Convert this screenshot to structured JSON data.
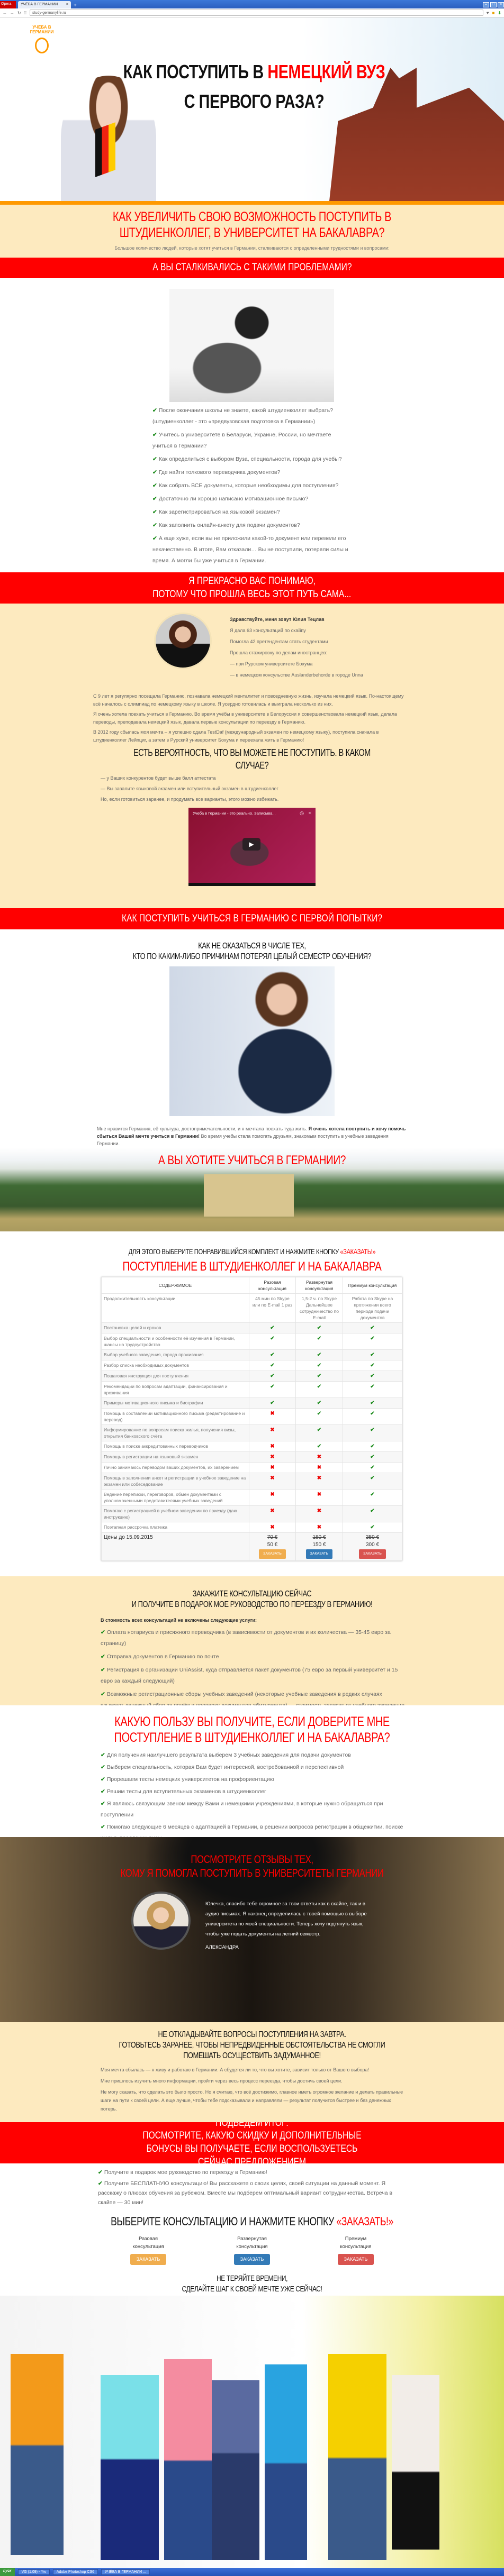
{
  "browser": {
    "app": "Opera",
    "tab_title": "УЧЁБА В ГЕРМАНИИ",
    "url": "study-germanylife.ru"
  },
  "colors": {
    "accent_red": "#ff0000",
    "orange": "#ff9900",
    "beige": "#fdeabf",
    "check_green": "#1a8a1a"
  },
  "hero": {
    "logo_text": "УЧЁБА В ГЕРМАНИИ",
    "title_pre": "КАК ПОСТУПИТЬ В ",
    "title_hl": "НЕМЕЦКИЙ ВУЗ",
    "title_post": " С ПЕРВОГО РАЗА?"
  },
  "intro": {
    "title": "КАК УВЕЛИЧИТЬ СВОЮ ВОЗМОЖНОСТЬ ПОСТУПИТЬ В ШТУДИЕНКОЛЛЕГ, В УНИВЕРСИТЕТ НА БАКАЛАВРА?",
    "subtitle": "Большое количество людей, которые хотят учиться в Германии, сталкиваются с определенными трудностями и вопросами:"
  },
  "problems": {
    "band": "А ВЫ СТАЛКИВАЛИСЬ С ТАКИМИ ПРОБЛЕМАМИ?",
    "items": [
      "После окончания школы не знаете, какой штудиенколлег выбрать? (штудиенколлег - это «предвузовская подготовка в Германии»)",
      "Учитесь в университете в Беларуси, Украине, России, но мечтаете учиться в Германии?",
      "Как определиться с выбором Вуза, специальности, города для учебы?",
      "Где найти толкового переводчика документов?",
      "Как собрать ВСЕ документы, которые необходимы для поступления?",
      "Достаточно ли хорошо написано мотивационное письмо?",
      "Как зарегистрироваться на языковой экзамен?",
      "Как заполнить онлайн-анкету для подачи документов?",
      "А еще хуже, если вы не приложили какой-то документ или перевели его некачественно. В итоге, Вам отказали… Вы не поступили, потеряли силы и время. А могли бы уже учиться в Германии."
    ]
  },
  "about": {
    "band_line1": "Я ПРЕКРАСНО ВАС ПОНИМАЮ,",
    "band_line2": "ПОТОМУ ЧТО ПРОШЛА ВЕСЬ ЭТОТ ПУТЬ САМА...",
    "greeting": "Здравствуйте, меня зовут Юлия Тецлав",
    "facts": [
      "Я дала 63 консультаций по скайпу",
      "Помогла 42 претендентам стать студентами",
      "Прошла стажировку по делам иностранцев:",
      "— при Рурском университете Бохума",
      "— в немецком консульстве Auslanderbehorde в городе Unna"
    ],
    "paragraphs": [
      "С 9 лет я регулярно посещала Германию, познавала немецкий менталитет и повседневную жизнь, изучала немецкий язык. По-настоящему всё началось с олимпиад по немецкому языку в школе. Я усердно готовилась и выиграла несколько из них.",
      "Я очень хотела поехать учиться в Германию. Во время учёбы в университете в Белоруссии я совершенствовала немецкий язык, делала переводы, преподавала немецкий язык, давала первые консультации по переезду в Германию.",
      "В 2012 году сбылась моя мечта – я успешно сдала TestDaf (международный экзамен по немецкому языку), поступила сначала в штудиенколлег Лейпциг, а затем в Рурский университет Бохума и переехала жить в Германию!"
    ],
    "risk_title": "ЕСТЬ ВЕРОЯТНОСТЬ, ЧТО ВЫ МОЖЕТЕ НЕ ПОСТУПИТЬ. В КАКОМ СЛУЧАЕ?",
    "risks": [
      "— у Ваших конкурентов будет выше балл аттестата",
      "— Вы завалите языковой экзамен или вступительный экзамен в штудиенколлег"
    ],
    "risk_note": "Но, если готовиться заранее, и продумать все варианты, этого можно избежать.",
    "video_title": "Учеба в Германии - это реально. Записыва..."
  },
  "how": {
    "band": "КАК ПОСТУПИТЬ УЧИТЬСЯ В ГЕРМАНИЮ С ПЕРВОЙ ПОПЫТКИ?",
    "sub1": "КАК НЕ ОКАЗАТЬСЯ В ЧИСЛЕ ТЕХ,",
    "sub2": "КТО ПО КАКИМ-ЛИБО ПРИЧИНАМ ПОТЕРЯЛ ЦЕЛЫЙ СЕМЕСТР ОБУЧЕНИЯ?",
    "p_a": "Мне нравится Германия, её культура, достопримечательности, и я мечтала поехать туда жить. ",
    "p_bold": "Я очень хотела поступить и хочу помочь сбыться Вашей мечте учиться в Германии!",
    "p_b": " Во время учебы стала помогать друзьям, знакомым поступить в учебные заведения Германии.",
    "want": "А ВЫ ХОТИТЕ УЧИТЬСЯ В ГЕРМАНИИ?"
  },
  "pricing": {
    "cta_pre": "ДЛЯ ЭТОГО ВЫБЕРИТЕ ПОНРАВИВШИЙСЯ КОМПЛЕКТ И НАЖМИТЕ КНОПКУ ",
    "cta_hl": "«ЗАКАЗАТЬ!»",
    "title": "ПОСТУПЛЕНИЕ В ШТУДИЕНКОЛЛЕГ И НА БАКАЛАВРА",
    "headers": [
      "СОДЕРЖИМОЕ",
      "Разовая консультация",
      "Развернутая консультация",
      "Премиум консультация"
    ],
    "duration": {
      "label": "Продолжительность консультации",
      "values": [
        "45 мин по Skype или по E-mail 1 раз",
        "1,5-2 ч. по Skype Дальнейшее сотрудничество по E-mail",
        "Работа по Skype на протяжении всего периода подачи документов"
      ]
    },
    "rows": [
      {
        "label": "Постановка целей и сроков",
        "v": [
          true,
          true,
          true
        ]
      },
      {
        "label": "Выбор специальности и особенности её изучения в Германии, шансы на трудоустройство",
        "v": [
          true,
          true,
          true
        ]
      },
      {
        "label": "Выбор учебного заведения, города проживания",
        "v": [
          true,
          true,
          true
        ]
      },
      {
        "label": "Разбор списка необходимых документов",
        "v": [
          true,
          true,
          true
        ]
      },
      {
        "label": "Пошаговая инструкция для поступления",
        "v": [
          true,
          true,
          true
        ]
      },
      {
        "label": "Рекомендации по вопросам адаптации, финансирования и проживания",
        "v": [
          true,
          true,
          true
        ]
      },
      {
        "label": "Примеры мотивационного письма и биографии",
        "v": [
          true,
          true,
          true
        ]
      },
      {
        "label": "Помощь в составлении мотивационного письма (редактирование и перевод)",
        "v": [
          false,
          true,
          true
        ]
      },
      {
        "label": "Информирование по вопросам поиска жилья, получения визы, открытия банковского счёта",
        "v": [
          false,
          true,
          true
        ]
      },
      {
        "label": "Помощь в поиске аккредитованных переводчиков",
        "v": [
          false,
          true,
          true
        ]
      },
      {
        "label": "Помощь в регистрации на языковый экзамен",
        "v": [
          false,
          false,
          true
        ]
      },
      {
        "label": "Лично занимаюсь переводом ваших документов, их заверением",
        "v": [
          false,
          false,
          true
        ]
      },
      {
        "label": "Помощь в заполнении анкет и регистрации в учебное заведение на экзамен или собеседование",
        "v": [
          false,
          false,
          true
        ]
      },
      {
        "label": "Ведение переписки, переговоров, обмен документами с уполномоченными представителями учебных заведений",
        "v": [
          false,
          false,
          true
        ]
      },
      {
        "label": "Помогаю с регистрацией в учебном заведении по приезду (даю инструкцию)",
        "v": [
          false,
          false,
          true
        ]
      },
      {
        "label": "Поэтапная рассрочка платежа",
        "v": [
          false,
          false,
          true
        ]
      }
    ],
    "price_label": "Цены до 15.09.2015",
    "old_prices": [
      "70 €",
      "180 €",
      "350 €"
    ],
    "prices": [
      "50 €",
      "150 €",
      "300 €"
    ],
    "order_label": "ЗАКАЗАТЬ"
  },
  "order": {
    "title1": "ЗАКАЖИТЕ КОНСУЛЬТАЦИЮ СЕЙЧАС",
    "title2": "И ПОЛУЧИТЕ В ПОДАРОК МОЕ РУКОВОДСТВО ПО ПЕРЕЕЗДУ В ГЕРМАНИЮ!",
    "excluded_title": "В стоимость всех консультаций не включены следующие услуги:",
    "items": [
      "Оплата нотариуса и присяжного переводчика (в зависимости от документов и их количества — 35-45 евро за страницу)",
      "Отправка документов в Германию по почте",
      "Регистрация в организации UniAssist, куда отправляется пакет документов (75 евро за первый университет и 15 евро за каждый следующий)",
      "Возможные регистрационные сборы учебных заведений (некоторые учебные заведения в редких случаях взымают денежный сбор за приём и проверку документов абитуриента) — стоимость зависит от учебного заведения",
      "Финансовые затраты связанные с открытие блокированного счета, получения медицинской страховки и визы"
    ]
  },
  "benefits": {
    "title": "КАКУЮ ПОЛЬЗУ ВЫ ПОЛУЧИТЕ, ЕСЛИ ДОВЕРИТЕ МНЕ ПОСТУПЛЕНИЕ В ШТУДИЕНКОЛЛЕГ И НА БАКАЛАВРА?",
    "items": [
      "Для получения наилучшего результата выберем 3 учебных заведения для подачи документов",
      "Выберем специальность, которая Вам будет интересной, востребованной и перспективной",
      "Прорешаем тесты немецких университетов на профориентацию",
      "Решим тесты для вступительных экзаменов в штудиенколлег",
      "Я являюсь связующим звеном между Вами и немецкими учреждениями, в которые нужно обращаться при поступлении",
      "Помогаю следующие 6 месяцев с адаптацией в Германии, в решении вопросов регистрации в общежитии, поиске жилья, продлении визы"
    ]
  },
  "reviews": {
    "title1": "ПОСМОТРИТЕ ОТЗЫВЫ ТЕХ,",
    "title2": "КОМУ Я ПОМОГЛА ПОСТУПИТЬ В УНИВЕРСИТЕТЫ ГЕРМАНИИ",
    "text": "Юлечка, спасибо тебе огромное за твои ответы как в скайпе, так и в аудио письмах. Я наконец определилась с твоей помощью в выборе университета по моей специальности. Теперь хочу подтянуть язык, чтобы уже подать документы на летний семестр.",
    "author": "АЛЕКСАНДРА"
  },
  "delay": {
    "title1": "НЕ ОТКЛАДЫВАЙТЕ ВОПРОСЫ ПОСТУПЛЕНИЯ НА ЗАВТРА.",
    "title2": "ГОТОВЬТЕСЬ ЗАРАНЕЕ, ЧТОБЫ НЕПРЕДВИДЕННЫЕ ОБСТОЯТЕЛЬСТВА НЕ СМОГЛИ ПОМЕШАТЬ ОСУЩЕСТВИТЬ ЗАДУМАННОЕ!",
    "paragraphs": [
      "Моя мечта сбылась — я живу и работаю в Германии. А сбудется ли то, что вы хотите, зависит только от Вашего выбора!",
      "Мне пришлось изучить много информации, пройти через весь процесс переезда, чтобы достичь своей цели.",
      "Не могу сказать, что сделать это было просто. Но я считаю, что всё достижимо, главное иметь огромное желание и делать правильные шаги на пути к своей цели. А еще лучше, чтобы тебе подсказывали и направляли — результат получится быстрее и без денежных потерь."
    ]
  },
  "summary": {
    "band1": "ПОДВЕДЕМ ИТОГ:",
    "band2": "ПОСМОТРИТЕ, КАКУЮ СКИДКУ И ДОПОЛНИТЕЛЬНЫЕ БОНУСЫ ВЫ ПОЛУЧАЕТЕ, ЕСЛИ ВОСПОЛЬЗУЕТЕСЬ СЕЙЧАС ПРЕДЛОЖЕНИЕМ",
    "items": [
      "Получите в подарок мое руководство по переезду в Германию!",
      "Получите БЕСПЛАТНУЮ консультацию! Вы расскажете о своих целях, своей ситуации на данный момент. Я расскажу о плюсах обучения за рубежом. Вместе мы подберем оптимальный вариант сотрудничества. Встреча в скайпе — 30 мин!"
    ],
    "cta_pre": "ВЫБЕРИТЕ КОНСУЛЬТАЦИЮ И НАЖМИТЕ КНОПКУ ",
    "cta_hl": "«ЗАКАЗАТЬ!»",
    "plans": [
      "Разовая консультация",
      "Развернутая консультация",
      "Премиум консультация"
    ],
    "order_label": "ЗАКАЗАТЬ",
    "closing1": "НЕ ТЕРЯЙТЕ ВРЕМЕНИ,",
    "closing2": "СДЕЛАЙТЕ ШАГ К СВОЕЙ МЕЧТЕ УЖЕ СЕЙЧАС!"
  },
  "taskbar": {
    "start": "пуск",
    "tasks": [
      "VG (1:09) - Yw",
      "Adobe Photoshop CS6",
      "УЧЁБА В ГЕРМАНИИ ..."
    ]
  }
}
